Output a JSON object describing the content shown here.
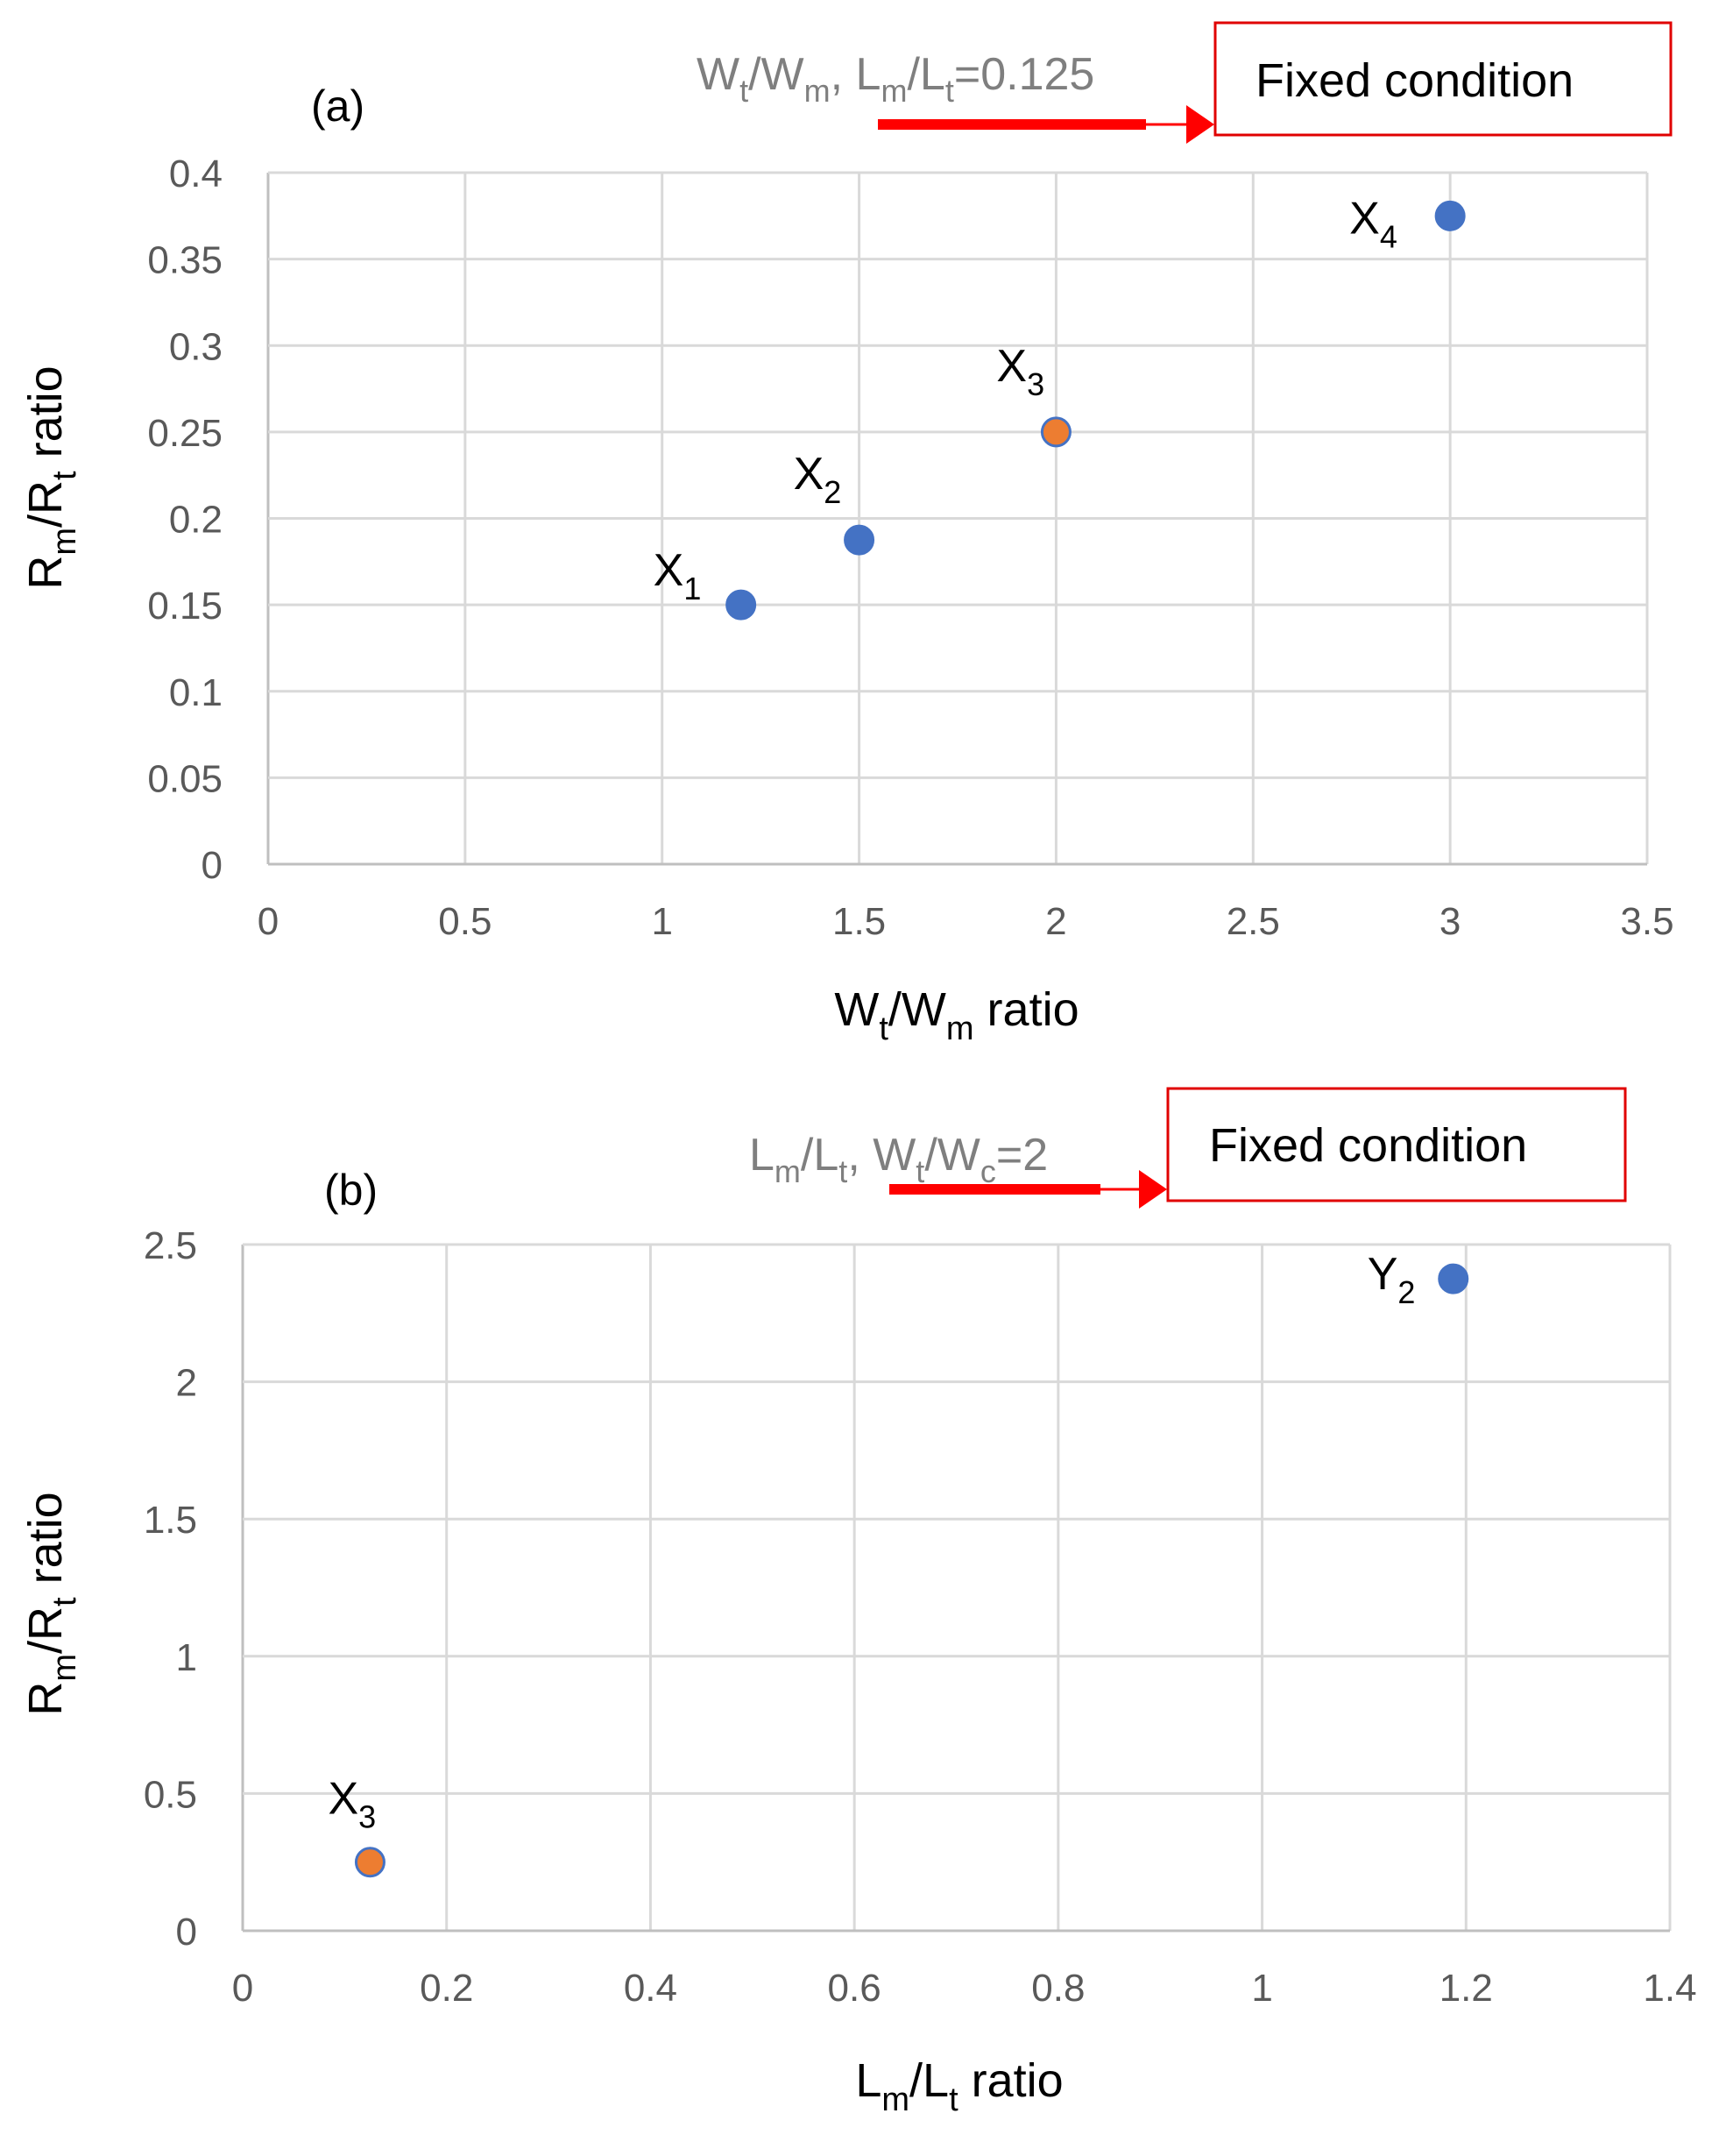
{
  "figure": {
    "panel_a_tag": "(a)",
    "panel_b_tag": "(b)"
  },
  "colors": {
    "blue_point": "#4472C4",
    "orange_point": "#ED7D31",
    "annotation_red": "#FF0000",
    "tick_text": "#595959",
    "condition_text": "#7F7F7F"
  },
  "chart_data": [
    {
      "id": "a",
      "type": "scatter",
      "title": "",
      "xlabel": "Wt/Wm ratio",
      "ylabel": "Rm/Rt ratio",
      "xlim": [
        0,
        3.5
      ],
      "ylim": [
        0,
        0.4
      ],
      "xticks": [
        0,
        0.5,
        1,
        1.5,
        2,
        2.5,
        3,
        3.5
      ],
      "yticks": [
        0,
        0.05,
        0.1,
        0.15,
        0.2,
        0.25,
        0.3,
        0.35,
        0.4
      ],
      "grid": true,
      "points": [
        {
          "label": "X1",
          "x": 1.2,
          "y": 0.15,
          "color": "#4472C4"
        },
        {
          "label": "X2",
          "x": 1.5,
          "y": 0.1875,
          "color": "#4472C4"
        },
        {
          "label": "X3",
          "x": 2.0,
          "y": 0.25,
          "color": "#ED7D31"
        },
        {
          "label": "X4",
          "x": 3.0,
          "y": 0.375,
          "color": "#4472C4"
        }
      ],
      "annotation": {
        "condition_text": "Wt/Wm, Lm/Lt=0.125",
        "box_text": "Fixed condition"
      }
    },
    {
      "id": "b",
      "type": "scatter",
      "title": "",
      "xlabel": "Lm/Lt ratio",
      "ylabel": "Rm/Rt ratio",
      "xlim": [
        0,
        1.4
      ],
      "ylim": [
        0,
        2.5
      ],
      "xticks": [
        0,
        0.2,
        0.4,
        0.6,
        0.8,
        1,
        1.2,
        1.4
      ],
      "yticks": [
        0,
        0.5,
        1,
        1.5,
        2,
        2.5
      ],
      "grid": true,
      "points": [
        {
          "label": "X3",
          "x": 0.125,
          "y": 0.25,
          "color": "#ED7D31"
        },
        {
          "label": "Y2",
          "x": 1.1875,
          "y": 2.375,
          "color": "#4472C4"
        }
      ],
      "annotation": {
        "condition_text": "Lm/Lt, Wt/Wc=2",
        "box_text": "Fixed condition"
      }
    }
  ]
}
